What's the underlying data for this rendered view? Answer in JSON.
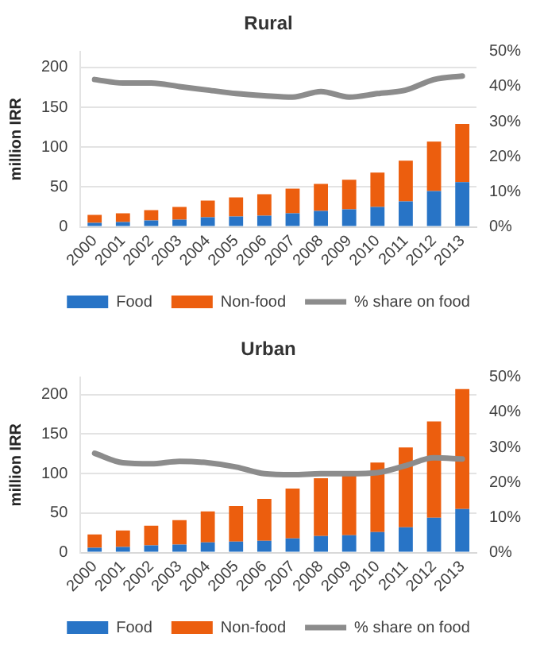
{
  "chart_data": [
    {
      "type": "bar",
      "title": "Rural",
      "ylabel": "million IRR",
      "stacked": true,
      "categories": [
        "2000",
        "2001",
        "2002",
        "2003",
        "2004",
        "2005",
        "2006",
        "2007",
        "2008",
        "2009",
        "2010",
        "2011",
        "2012",
        "2013"
      ],
      "series": [
        {
          "name": "Food",
          "color": "#2874c6",
          "values": [
            5,
            6,
            8,
            9,
            12,
            13,
            14,
            17,
            20,
            22,
            25,
            32,
            45,
            56
          ]
        },
        {
          "name": "Non-food",
          "color": "#ec5e0e",
          "values": [
            10,
            11,
            13,
            16,
            21,
            24,
            27,
            31,
            34,
            37,
            43,
            51,
            62,
            73
          ]
        },
        {
          "name": "% share on food",
          "type": "line",
          "axis": "y2",
          "color": "#8c8c8c",
          "values": [
            42,
            41,
            41,
            40,
            39,
            38,
            37.4,
            37,
            38.6,
            37,
            38,
            39,
            42,
            43
          ]
        }
      ],
      "ylim": [
        0,
        220
      ],
      "yticks": [
        0,
        50,
        100,
        150,
        200
      ],
      "y2lim": [
        0,
        50
      ],
      "y2ticks": [
        {
          "value": 0,
          "label": "0%"
        },
        {
          "value": 10,
          "label": "10%"
        },
        {
          "value": 20,
          "label": "20%"
        },
        {
          "value": 30,
          "label": "30%"
        },
        {
          "value": 40,
          "label": "40%"
        },
        {
          "value": 50,
          "label": "50%"
        }
      ],
      "grid": "y",
      "legend": "bottom",
      "marker": "none",
      "line_style": "solid"
    },
    {
      "type": "bar",
      "title": "Urban",
      "ylabel": "million IRR",
      "stacked": true,
      "categories": [
        "2000",
        "2001",
        "2002",
        "2003",
        "2004",
        "2005",
        "2006",
        "2007",
        "2008",
        "2009",
        "2010",
        "2011",
        "2012",
        "2013"
      ],
      "series": [
        {
          "name": "Food",
          "color": "#2874c6",
          "values": [
            6,
            7,
            9,
            10,
            13,
            14,
            15,
            18,
            21,
            22,
            26,
            32,
            44,
            55
          ]
        },
        {
          "name": "Non-food",
          "color": "#ec5e0e",
          "values": [
            17,
            21,
            25,
            31,
            39,
            45,
            53,
            63,
            73,
            77,
            88,
            101,
            122,
            152
          ]
        },
        {
          "name": "% share on food",
          "type": "line",
          "axis": "y2",
          "color": "#8c8c8c",
          "values": [
            28.3,
            25.6,
            25.3,
            26,
            25.6,
            24.4,
            22.5,
            22.2,
            22.5,
            22.5,
            22.8,
            24.8,
            27,
            26.7
          ]
        }
      ],
      "ylim": [
        0,
        222
      ],
      "yticks": [
        0,
        50,
        100,
        150,
        200
      ],
      "y2lim": [
        0,
        50
      ],
      "y2ticks": [
        {
          "value": 0,
          "label": "0%"
        },
        {
          "value": 10,
          "label": "10%"
        },
        {
          "value": 20,
          "label": "20%"
        },
        {
          "value": 30,
          "label": "30%"
        },
        {
          "value": 40,
          "label": "40%"
        },
        {
          "value": 50,
          "label": "50%"
        }
      ],
      "grid": "y",
      "legend": "bottom",
      "marker": "none",
      "line_style": "solid"
    }
  ]
}
